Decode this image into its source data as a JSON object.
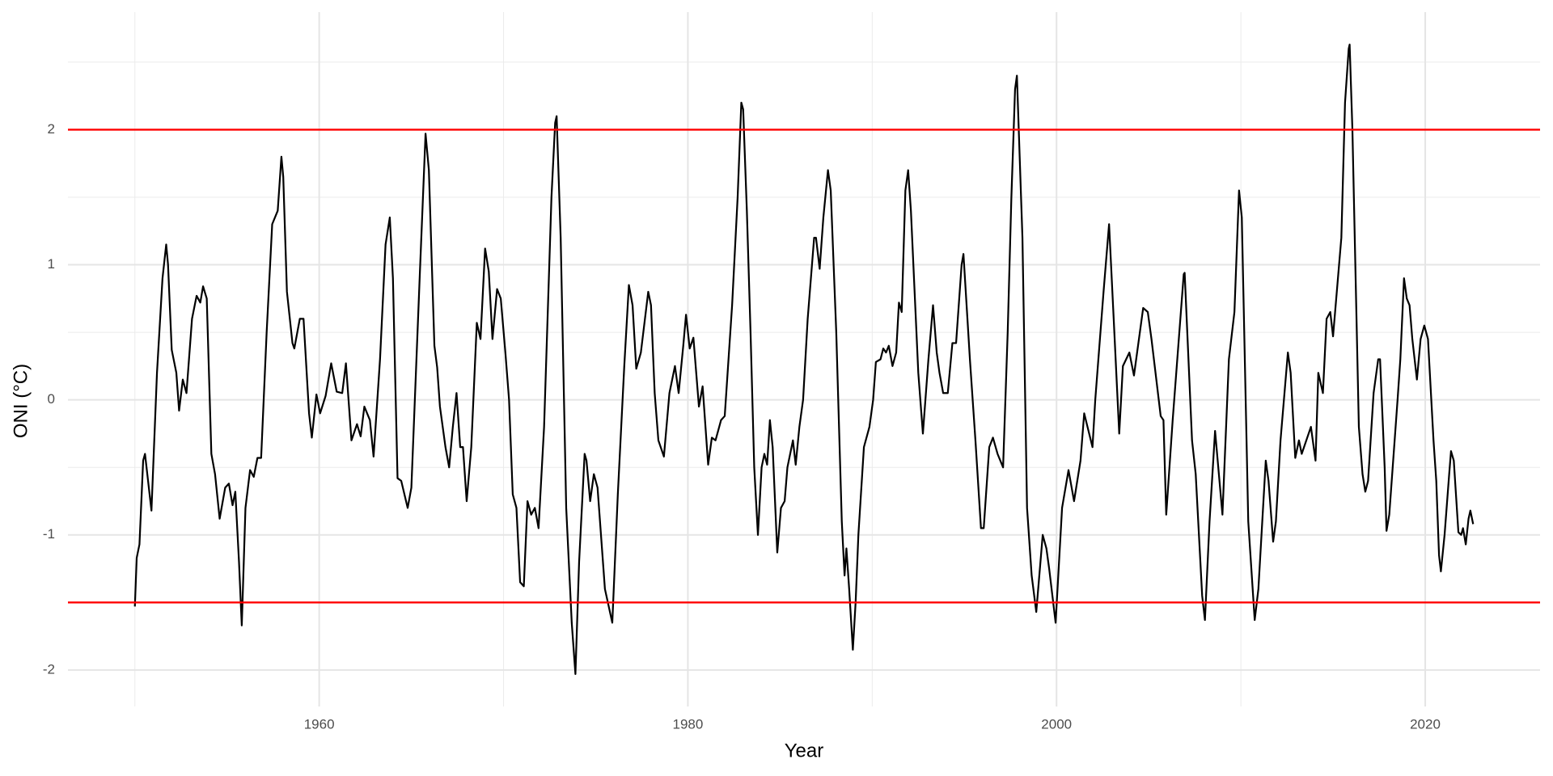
{
  "chart_data": {
    "type": "line",
    "x_label": "Year",
    "y_label": "ONI (°C)",
    "xlim": [
      1946.37,
      2026.23
    ],
    "ylim": [
      -2.27,
      2.87
    ],
    "xticks": [
      1960,
      1980,
      2000,
      2020
    ],
    "yticks": [
      -2,
      -1,
      0,
      1,
      2
    ],
    "x_minor_grid": [
      1950,
      1970,
      1990,
      2010
    ],
    "y_minor_grid": [
      -1.5,
      -0.5,
      0.5,
      1.5,
      2.5
    ],
    "grid": true,
    "hlines": [
      {
        "value": 2,
        "color": "#ff0000"
      },
      {
        "value": -1.5,
        "color": "#ff0000"
      }
    ],
    "series": [
      {
        "name": "ONI",
        "color": "#000000",
        "x": [
          1950.0,
          1950.1,
          1950.25,
          1950.45,
          1950.55,
          1950.9,
          1951.2,
          1951.5,
          1951.7,
          1951.8,
          1952.0,
          1952.25,
          1952.4,
          1952.6,
          1952.8,
          1953.1,
          1953.35,
          1953.55,
          1953.7,
          1953.9,
          1954.15,
          1954.35,
          1954.6,
          1954.9,
          1955.1,
          1955.3,
          1955.45,
          1955.65,
          1955.8,
          1956.0,
          1956.25,
          1956.45,
          1956.65,
          1956.85,
          1957.15,
          1957.45,
          1957.75,
          1957.95,
          1958.05,
          1958.25,
          1958.55,
          1958.65,
          1958.95,
          1959.15,
          1959.45,
          1959.6,
          1959.85,
          1960.05,
          1960.35,
          1960.65,
          1960.95,
          1961.25,
          1961.45,
          1961.75,
          1962.05,
          1962.25,
          1962.45,
          1962.75,
          1962.95,
          1963.3,
          1963.6,
          1963.83,
          1964.0,
          1964.25,
          1964.45,
          1964.8,
          1965.0,
          1965.45,
          1965.77,
          1965.95,
          1966.25,
          1966.4,
          1966.55,
          1966.85,
          1967.05,
          1967.25,
          1967.45,
          1967.65,
          1967.8,
          1968.0,
          1968.25,
          1968.55,
          1968.75,
          1969.0,
          1969.2,
          1969.4,
          1969.65,
          1969.85,
          1970.1,
          1970.3,
          1970.5,
          1970.7,
          1970.9,
          1971.1,
          1971.3,
          1971.5,
          1971.7,
          1971.9,
          1972.2,
          1972.6,
          1972.8,
          1972.88,
          1973.1,
          1973.4,
          1973.7,
          1973.9,
          1974.1,
          1974.4,
          1974.5,
          1974.7,
          1974.9,
          1975.1,
          1975.5,
          1975.9,
          1976.2,
          1976.55,
          1976.8,
          1977.0,
          1977.2,
          1977.45,
          1977.85,
          1978.0,
          1978.2,
          1978.4,
          1978.7,
          1979.0,
          1979.3,
          1979.5,
          1979.75,
          1979.9,
          1980.1,
          1980.3,
          1980.6,
          1980.8,
          1981.1,
          1981.3,
          1981.5,
          1981.8,
          1982.0,
          1982.4,
          1982.7,
          1982.9,
          1983.0,
          1983.2,
          1983.4,
          1983.6,
          1983.8,
          1984.0,
          1984.15,
          1984.3,
          1984.45,
          1984.6,
          1984.85,
          1985.05,
          1985.25,
          1985.4,
          1985.55,
          1985.7,
          1985.85,
          1986.05,
          1986.25,
          1986.5,
          1986.85,
          1986.95,
          1987.15,
          1987.35,
          1987.6,
          1987.75,
          1988.05,
          1988.35,
          1988.5,
          1988.6,
          1988.75,
          1988.95,
          1989.1,
          1989.25,
          1989.55,
          1989.85,
          1990.05,
          1990.2,
          1990.45,
          1990.6,
          1990.75,
          1990.9,
          1991.1,
          1991.3,
          1991.45,
          1991.6,
          1991.8,
          1991.95,
          1992.1,
          1992.5,
          1992.75,
          1993.05,
          1993.3,
          1993.5,
          1993.65,
          1993.85,
          1994.1,
          1994.35,
          1994.55,
          1994.85,
          1994.95,
          1995.3,
          1995.6,
          1995.9,
          1996.05,
          1996.35,
          1996.55,
          1996.8,
          1997.1,
          1997.35,
          1997.55,
          1997.75,
          1997.85,
          1998.15,
          1998.4,
          1998.65,
          1998.9,
          1999.25,
          1999.45,
          1999.6,
          1999.95,
          2000.3,
          2000.65,
          2000.95,
          2001.3,
          2001.5,
          2001.95,
          2002.1,
          2002.55,
          2002.85,
          2003.1,
          2003.4,
          2003.6,
          2003.95,
          2004.2,
          2004.7,
          2004.95,
          2005.15,
          2005.65,
          2005.8,
          2005.95,
          2006.3,
          2006.9,
          2006.95,
          2007.35,
          2007.55,
          2007.9,
          2008.05,
          2008.3,
          2008.6,
          2009.0,
          2009.35,
          2009.65,
          2009.9,
          2010.05,
          2010.4,
          2010.75,
          2010.95,
          2011.35,
          2011.5,
          2011.75,
          2011.9,
          2012.15,
          2012.55,
          2012.7,
          2012.95,
          2013.15,
          2013.3,
          2013.8,
          2014.05,
          2014.2,
          2014.45,
          2014.65,
          2014.85,
          2015.0,
          2015.45,
          2015.65,
          2015.85,
          2015.9,
          2016.05,
          2016.4,
          2016.6,
          2016.75,
          2016.9,
          2017.2,
          2017.45,
          2017.55,
          2017.8,
          2017.9,
          2018.05,
          2018.5,
          2018.65,
          2018.85,
          2019.0,
          2019.15,
          2019.3,
          2019.55,
          2019.75,
          2019.95,
          2020.15,
          2020.45,
          2020.6,
          2020.75,
          2020.85,
          2021.05,
          2021.3,
          2021.4,
          2021.55,
          2021.8,
          2021.95,
          2022.05,
          2022.2,
          2022.35,
          2022.45,
          2022.6
        ],
        "values": [
          -1.53,
          -1.17,
          -1.07,
          -0.45,
          -0.4,
          -0.82,
          0.2,
          0.9,
          1.15,
          1.0,
          0.37,
          0.2,
          -0.08,
          0.15,
          0.05,
          0.6,
          0.77,
          0.72,
          0.84,
          0.75,
          -0.4,
          -0.55,
          -0.88,
          -0.65,
          -0.62,
          -0.78,
          -0.68,
          -1.2,
          -1.67,
          -0.8,
          -0.52,
          -0.57,
          -0.43,
          -0.43,
          0.5,
          1.3,
          1.4,
          1.8,
          1.65,
          0.8,
          0.42,
          0.38,
          0.6,
          0.6,
          -0.1,
          -0.28,
          0.04,
          -0.1,
          0.03,
          0.27,
          0.06,
          0.05,
          0.27,
          -0.3,
          -0.18,
          -0.27,
          -0.05,
          -0.15,
          -0.42,
          0.3,
          1.15,
          1.35,
          0.9,
          -0.58,
          -0.6,
          -0.8,
          -0.65,
          0.9,
          1.97,
          1.7,
          0.4,
          0.24,
          -0.05,
          -0.35,
          -0.5,
          -0.2,
          0.05,
          -0.35,
          -0.35,
          -0.75,
          -0.35,
          0.57,
          0.45,
          1.12,
          0.95,
          0.45,
          0.82,
          0.75,
          0.35,
          0.0,
          -0.7,
          -0.8,
          -1.35,
          -1.38,
          -0.75,
          -0.85,
          -0.8,
          -0.95,
          -0.2,
          1.5,
          2.05,
          2.1,
          1.2,
          -0.8,
          -1.65,
          -2.03,
          -1.2,
          -0.4,
          -0.45,
          -0.75,
          -0.55,
          -0.65,
          -1.4,
          -1.65,
          -0.7,
          0.25,
          0.85,
          0.7,
          0.23,
          0.35,
          0.8,
          0.7,
          0.05,
          -0.3,
          -0.42,
          0.05,
          0.25,
          0.05,
          0.4,
          0.63,
          0.38,
          0.46,
          -0.05,
          0.1,
          -0.48,
          -0.28,
          -0.3,
          -0.15,
          -0.12,
          0.7,
          1.5,
          2.2,
          2.15,
          1.4,
          0.5,
          -0.5,
          -1.0,
          -0.5,
          -0.4,
          -0.48,
          -0.15,
          -0.35,
          -1.13,
          -0.8,
          -0.75,
          -0.5,
          -0.4,
          -0.3,
          -0.48,
          -0.2,
          0.0,
          0.6,
          1.2,
          1.2,
          0.97,
          1.35,
          1.7,
          1.55,
          0.5,
          -0.9,
          -1.3,
          -1.1,
          -1.4,
          -1.85,
          -1.5,
          -1.0,
          -0.35,
          -0.2,
          0.0,
          0.28,
          0.3,
          0.38,
          0.35,
          0.4,
          0.25,
          0.35,
          0.72,
          0.65,
          1.55,
          1.7,
          1.4,
          0.2,
          -0.25,
          0.3,
          0.7,
          0.35,
          0.2,
          0.05,
          0.05,
          0.42,
          0.42,
          1.0,
          1.08,
          0.3,
          -0.3,
          -0.95,
          -0.95,
          -0.35,
          -0.28,
          -0.4,
          -0.5,
          0.5,
          1.5,
          2.3,
          2.4,
          1.2,
          -0.8,
          -1.3,
          -1.57,
          -1.0,
          -1.1,
          -1.25,
          -1.65,
          -0.8,
          -0.52,
          -0.75,
          -0.45,
          -0.1,
          -0.35,
          0.0,
          0.8,
          1.3,
          0.6,
          -0.25,
          0.25,
          0.35,
          0.18,
          0.68,
          0.65,
          0.45,
          -0.12,
          -0.15,
          -0.85,
          -0.15,
          0.93,
          0.94,
          -0.3,
          -0.55,
          -1.45,
          -1.63,
          -0.9,
          -0.23,
          -0.85,
          0.3,
          0.65,
          1.55,
          1.35,
          -0.9,
          -1.63,
          -1.4,
          -0.45,
          -0.6,
          -1.05,
          -0.9,
          -0.3,
          0.35,
          0.2,
          -0.43,
          -0.3,
          -0.4,
          -0.2,
          -0.45,
          0.2,
          0.05,
          0.6,
          0.65,
          0.47,
          1.2,
          2.2,
          2.6,
          2.63,
          2.0,
          -0.2,
          -0.55,
          -0.68,
          -0.6,
          0.05,
          0.3,
          0.3,
          -0.5,
          -0.97,
          -0.85,
          0.0,
          0.3,
          0.9,
          0.75,
          0.7,
          0.45,
          0.15,
          0.45,
          0.55,
          0.45,
          -0.3,
          -0.6,
          -1.15,
          -1.27,
          -1.0,
          -0.55,
          -0.38,
          -0.45,
          -0.98,
          -1.0,
          -0.95,
          -1.07,
          -0.88,
          -0.82,
          -0.92
        ]
      }
    ]
  }
}
